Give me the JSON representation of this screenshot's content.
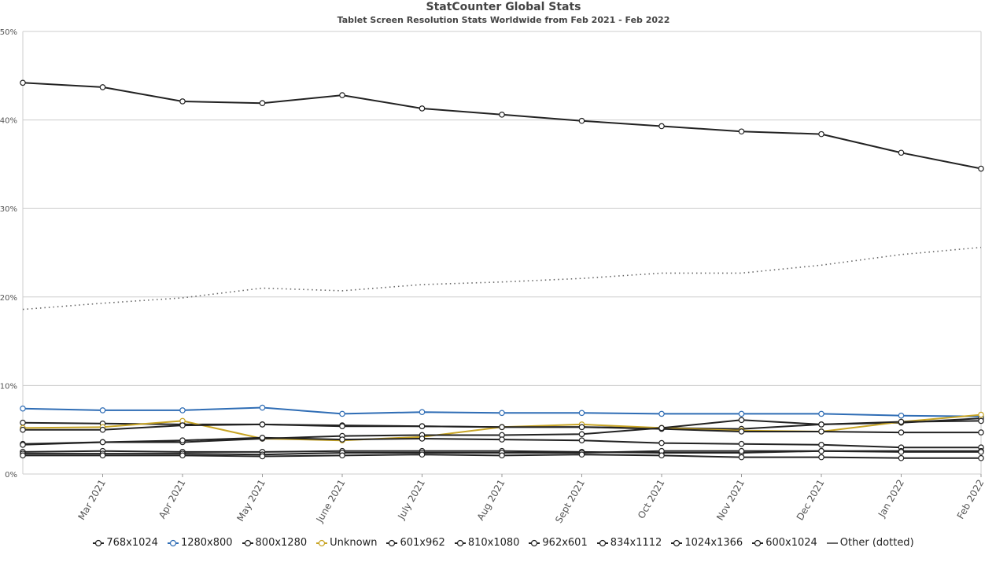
{
  "chart_data": {
    "type": "line",
    "title": "StatCounter Global Stats",
    "subtitle": "Tablet Screen Resolution Stats Worldwide from Feb 2021 - Feb 2022",
    "categories": [
      "Feb 2021",
      "Mar 2021",
      "Apr 2021",
      "May 2021",
      "June 2021",
      "July 2021",
      "Aug 2021",
      "Sept 2021",
      "Oct 2021",
      "Nov 2021",
      "Dec 2021",
      "Jan 2022",
      "Feb 2022"
    ],
    "x_tick_labels": [
      "",
      "Mar 2021",
      "Apr 2021",
      "May 2021",
      "June 2021",
      "July 2021",
      "Aug 2021",
      "Sept 2021",
      "Oct 2021",
      "Nov 2021",
      "Dec 2021",
      "Jan 2022",
      "Feb 2022"
    ],
    "ylim": [
      0,
      50
    ],
    "y_ticks": [
      {
        "value": 0,
        "label": "0%"
      },
      {
        "value": 10,
        "label": "10%"
      },
      {
        "value": 20,
        "label": "20%"
      },
      {
        "value": 30,
        "label": "30%"
      },
      {
        "value": 40,
        "label": "40%"
      },
      {
        "value": 50,
        "label": "50%"
      }
    ],
    "grid": true,
    "legend_position": "bottom",
    "series": [
      {
        "name": "768x1024",
        "color": "#222222",
        "dotted": false,
        "markers": true,
        "values": [
          44.2,
          43.7,
          42.1,
          41.9,
          42.8,
          41.3,
          40.6,
          39.9,
          39.3,
          38.7,
          38.4,
          36.3,
          34.5
        ]
      },
      {
        "name": "1280x800",
        "color": "#2f6db5",
        "dotted": false,
        "markers": true,
        "values": [
          7.4,
          7.2,
          7.2,
          7.5,
          6.8,
          7.0,
          6.9,
          6.9,
          6.8,
          6.8,
          6.8,
          6.6,
          6.5
        ]
      },
      {
        "name": "800x1280",
        "color": "#222222",
        "dotted": false,
        "markers": true,
        "values": [
          5.8,
          5.7,
          5.6,
          5.6,
          5.5,
          5.4,
          5.3,
          5.3,
          5.2,
          5.1,
          5.6,
          5.8,
          6.3
        ]
      },
      {
        "name": "Unknown",
        "color": "#c8a526",
        "dotted": false,
        "markers": true,
        "values": [
          5.2,
          5.3,
          6.0,
          4.0,
          3.8,
          4.2,
          5.3,
          5.6,
          5.2,
          4.9,
          4.8,
          5.9,
          6.7
        ]
      },
      {
        "name": "601x962",
        "color": "#222222",
        "dotted": false,
        "markers": true,
        "values": [
          5.0,
          5.0,
          5.5,
          5.6,
          5.4,
          5.4,
          5.3,
          5.3,
          5.1,
          4.8,
          4.8,
          4.7,
          4.7
        ]
      },
      {
        "name": "810x1080",
        "color": "#222222",
        "dotted": false,
        "markers": true,
        "values": [
          3.4,
          3.6,
          3.6,
          4.0,
          4.3,
          4.4,
          4.4,
          4.5,
          5.2,
          6.1,
          5.6,
          5.9,
          6.0
        ]
      },
      {
        "name": "962x601",
        "color": "#222222",
        "dotted": false,
        "markers": true,
        "values": [
          3.3,
          3.6,
          3.8,
          4.1,
          3.9,
          4.0,
          3.9,
          3.8,
          3.5,
          3.4,
          3.3,
          3.0,
          3.0
        ]
      },
      {
        "name": "834x1112",
        "color": "#222222",
        "dotted": false,
        "markers": true,
        "values": [
          2.5,
          2.6,
          2.5,
          2.5,
          2.6,
          2.6,
          2.6,
          2.5,
          2.4,
          2.4,
          2.6,
          2.6,
          2.6
        ]
      },
      {
        "name": "1024x1366",
        "color": "#222222",
        "dotted": false,
        "markers": true,
        "values": [
          2.3,
          2.3,
          2.3,
          2.2,
          2.4,
          2.4,
          2.4,
          2.4,
          2.6,
          2.6,
          2.6,
          2.5,
          2.5
        ]
      },
      {
        "name": "600x1024",
        "color": "#222222",
        "dotted": false,
        "markers": true,
        "values": [
          2.1,
          2.1,
          2.1,
          2.0,
          2.1,
          2.2,
          2.1,
          2.2,
          2.1,
          1.9,
          1.9,
          1.8,
          1.8
        ]
      },
      {
        "name": "Other (dotted)",
        "color": "#666666",
        "dotted": true,
        "markers": false,
        "values": [
          18.6,
          19.3,
          19.9,
          21.0,
          20.7,
          21.4,
          21.7,
          22.1,
          22.7,
          22.7,
          23.6,
          24.8,
          25.6
        ]
      }
    ]
  }
}
